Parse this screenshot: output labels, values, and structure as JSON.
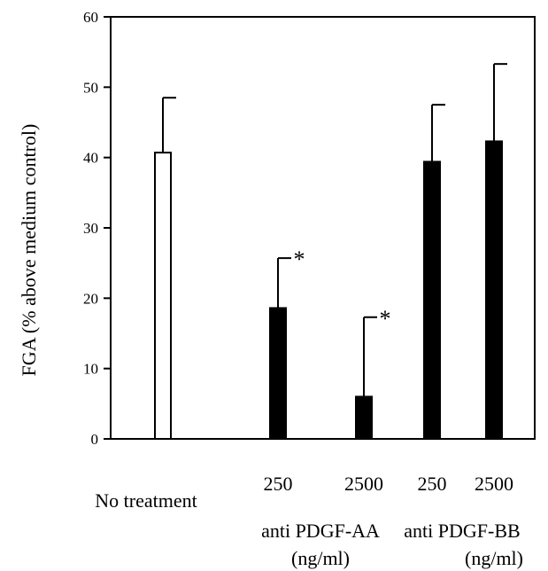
{
  "chart_data": {
    "type": "bar",
    "ylabel": "FGA (% above medium control)",
    "ylim": [
      0,
      60
    ],
    "yticks": [
      "0",
      "10",
      "20",
      "30",
      "40",
      "50",
      "60"
    ],
    "grid": false,
    "bars": [
      {
        "category": "No treatment",
        "value": 40.7,
        "error": 7.8,
        "fill": "white",
        "significant": false
      },
      {
        "category": "250",
        "group": "anti PDGF-AA",
        "value": 18.6,
        "error": 7.1,
        "fill": "black",
        "significant": true
      },
      {
        "category": "2500",
        "group": "anti PDGF-AA",
        "value": 6.0,
        "error": 11.3,
        "fill": "black",
        "significant": true
      },
      {
        "category": "250",
        "group": "anti PDGF-BB",
        "value": 39.4,
        "error": 8.1,
        "fill": "black",
        "significant": false
      },
      {
        "category": "2500",
        "group": "anti PDGF-BB",
        "value": 42.3,
        "error": 11.0,
        "fill": "black",
        "significant": false
      }
    ],
    "group_labels": [
      {
        "name": "anti PDGF-AA",
        "unit": "(ng/ml)"
      },
      {
        "name": "anti PDGF-BB",
        "unit": "(ng/ml)"
      }
    ],
    "significance_marker": "*",
    "colors": {
      "filled": "#000000",
      "open": "#ffffff",
      "axis": "#000000"
    }
  }
}
